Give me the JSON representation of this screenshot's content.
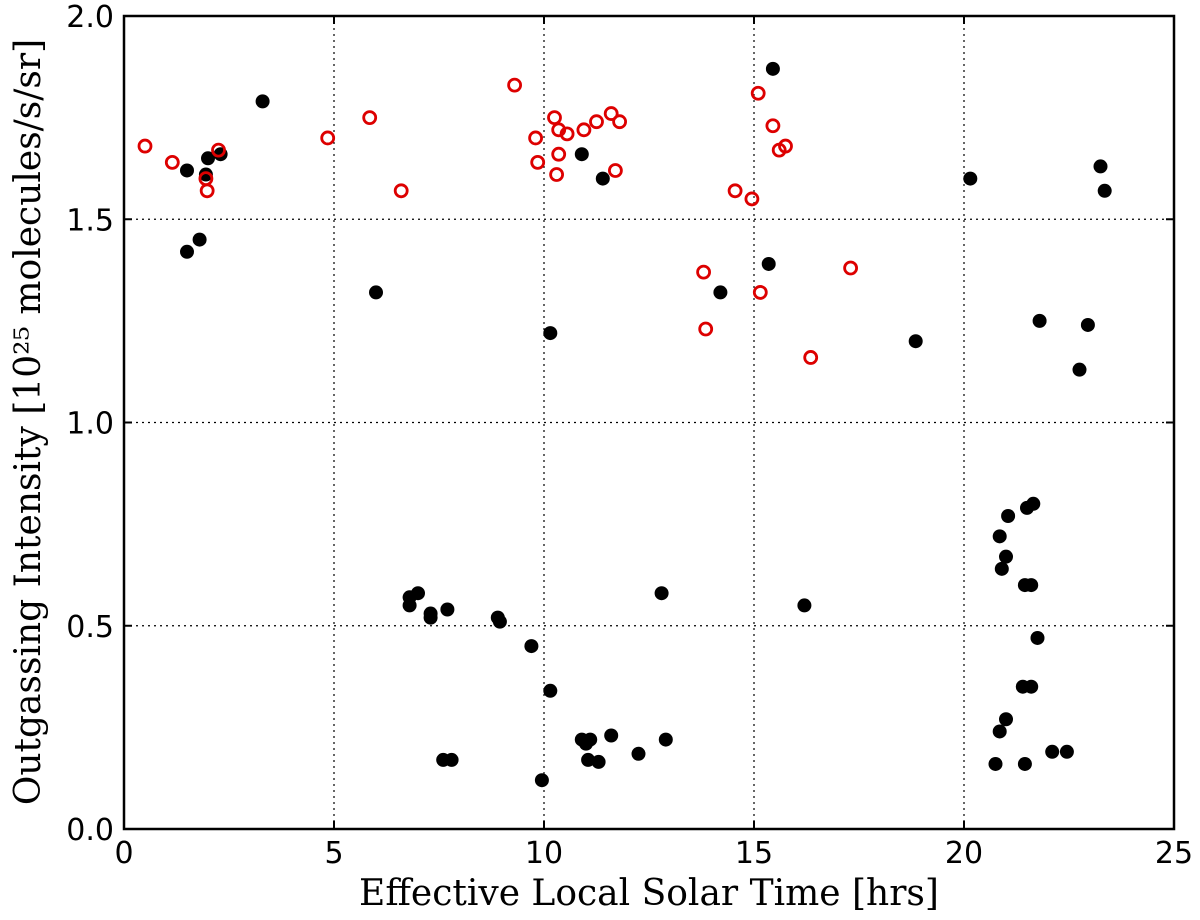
{
  "chart_data": {
    "type": "scatter",
    "xlabel": "Effective Local Solar Time [hrs]",
    "ylabel": "Outgassing Intensity [10²⁵ molecules/s/sr]",
    "xlim": [
      0,
      25
    ],
    "ylim": [
      0.0,
      2.0
    ],
    "xticks": [
      0,
      5,
      10,
      15,
      20,
      25
    ],
    "yticks": [
      0.0,
      0.5,
      1.0,
      1.5,
      2.0
    ],
    "xtick_labels": [
      "0",
      "5",
      "10",
      "15",
      "20",
      "25"
    ],
    "ytick_labels": [
      "0.0",
      "0.5",
      "1.0",
      "1.5",
      "2.0"
    ],
    "grid": true,
    "series": [
      {
        "marker": "filled-circle",
        "color": "#000000",
        "points": [
          [
            1.5,
            1.62
          ],
          [
            1.5,
            1.42
          ],
          [
            1.8,
            1.45
          ],
          [
            1.95,
            1.61
          ],
          [
            2.0,
            1.65
          ],
          [
            2.3,
            1.66
          ],
          [
            3.3,
            1.79
          ],
          [
            6.0,
            1.32
          ],
          [
            10.15,
            1.22
          ],
          [
            10.9,
            1.66
          ],
          [
            11.4,
            1.6
          ],
          [
            14.2,
            1.32
          ],
          [
            15.35,
            1.39
          ],
          [
            15.45,
            1.87
          ],
          [
            18.85,
            1.2
          ],
          [
            20.15,
            1.6
          ],
          [
            21.8,
            1.25
          ],
          [
            22.75,
            1.13
          ],
          [
            22.95,
            1.24
          ],
          [
            23.25,
            1.63
          ],
          [
            23.35,
            1.57
          ],
          [
            6.8,
            0.57
          ],
          [
            6.8,
            0.55
          ],
          [
            7.0,
            0.58
          ],
          [
            7.3,
            0.53
          ],
          [
            7.3,
            0.52
          ],
          [
            7.7,
            0.54
          ],
          [
            8.9,
            0.52
          ],
          [
            8.95,
            0.51
          ],
          [
            9.7,
            0.45
          ],
          [
            10.15,
            0.34
          ],
          [
            9.95,
            0.12
          ],
          [
            7.6,
            0.17
          ],
          [
            7.8,
            0.17
          ],
          [
            10.9,
            0.22
          ],
          [
            11.0,
            0.21
          ],
          [
            11.1,
            0.22
          ],
          [
            11.05,
            0.17
          ],
          [
            11.3,
            0.165
          ],
          [
            11.6,
            0.23
          ],
          [
            12.25,
            0.185
          ],
          [
            12.9,
            0.22
          ],
          [
            12.8,
            0.58
          ],
          [
            16.2,
            0.55
          ],
          [
            20.75,
            0.16
          ],
          [
            20.85,
            0.24
          ],
          [
            21.0,
            0.27
          ],
          [
            20.85,
            0.72
          ],
          [
            20.9,
            0.64
          ],
          [
            21.0,
            0.67
          ],
          [
            21.05,
            0.77
          ],
          [
            21.4,
            0.35
          ],
          [
            21.6,
            0.35
          ],
          [
            21.45,
            0.16
          ],
          [
            21.45,
            0.6
          ],
          [
            21.6,
            0.6
          ],
          [
            21.5,
            0.79
          ],
          [
            21.65,
            0.8
          ],
          [
            21.75,
            0.47
          ],
          [
            22.1,
            0.19
          ],
          [
            22.45,
            0.19
          ]
        ]
      },
      {
        "marker": "open-circle",
        "color": "#dd0000",
        "points": [
          [
            0.5,
            1.68
          ],
          [
            1.15,
            1.64
          ],
          [
            1.95,
            1.6
          ],
          [
            1.98,
            1.57
          ],
          [
            2.25,
            1.67
          ],
          [
            4.85,
            1.7
          ],
          [
            5.85,
            1.75
          ],
          [
            6.6,
            1.57
          ],
          [
            9.3,
            1.83
          ],
          [
            9.8,
            1.7
          ],
          [
            9.85,
            1.64
          ],
          [
            10.25,
            1.75
          ],
          [
            10.3,
            1.61
          ],
          [
            10.35,
            1.72
          ],
          [
            10.35,
            1.66
          ],
          [
            10.55,
            1.71
          ],
          [
            10.95,
            1.72
          ],
          [
            11.25,
            1.74
          ],
          [
            11.6,
            1.76
          ],
          [
            11.7,
            1.62
          ],
          [
            11.8,
            1.74
          ],
          [
            13.8,
            1.37
          ],
          [
            13.85,
            1.23
          ],
          [
            14.55,
            1.57
          ],
          [
            14.95,
            1.55
          ],
          [
            15.1,
            1.81
          ],
          [
            15.15,
            1.32
          ],
          [
            15.45,
            1.73
          ],
          [
            15.6,
            1.67
          ],
          [
            15.75,
            1.68
          ],
          [
            16.35,
            1.16
          ],
          [
            17.3,
            1.38
          ]
        ]
      }
    ]
  }
}
